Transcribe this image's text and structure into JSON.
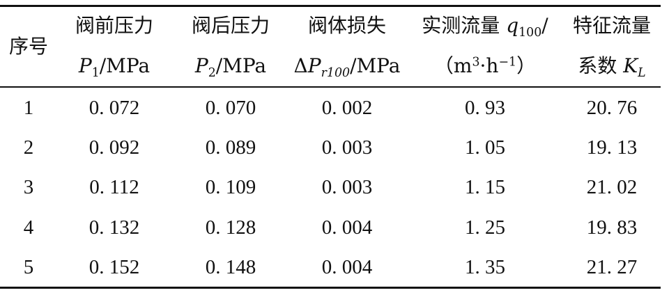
{
  "table": {
    "headers": [
      {
        "line1": "序号",
        "line2": ""
      },
      {
        "line1": "阀前压力",
        "line2": {
          "symbol": "P",
          "sub": "1",
          "unit": "/MPa"
        }
      },
      {
        "line1": "阀后压力",
        "line2": {
          "symbol": "P",
          "sub": "2",
          "unit": "/MPa"
        }
      },
      {
        "line1": "阀体损失",
        "line2": {
          "prefix": "Δ",
          "symbol": "P",
          "sub": "r100",
          "unit": "/MPa"
        }
      },
      {
        "line1": {
          "text": "实测流量 ",
          "symbol": "q",
          "sub": "100",
          "suffix": "/"
        },
        "line2": {
          "open": "（m",
          "sup1": "3",
          "dot": "·h",
          "sup2": "−1",
          "close": "）"
        }
      },
      {
        "line1": "特征流量",
        "line2": {
          "text": "系数 ",
          "symbol": "K",
          "sub": "L"
        }
      }
    ],
    "rows": [
      [
        "1",
        "0. 072",
        "0. 070",
        "0. 002",
        "0. 93",
        "20. 76"
      ],
      [
        "2",
        "0. 092",
        "0. 089",
        "0. 003",
        "1. 05",
        "19. 13"
      ],
      [
        "3",
        "0. 112",
        "0. 109",
        "0. 003",
        "1. 15",
        "21. 02"
      ],
      [
        "4",
        "0. 132",
        "0. 128",
        "0. 004",
        "1. 25",
        "19. 83"
      ],
      [
        "5",
        "0. 152",
        "0. 148",
        "0. 004",
        "1. 35",
        "21. 27"
      ]
    ]
  }
}
